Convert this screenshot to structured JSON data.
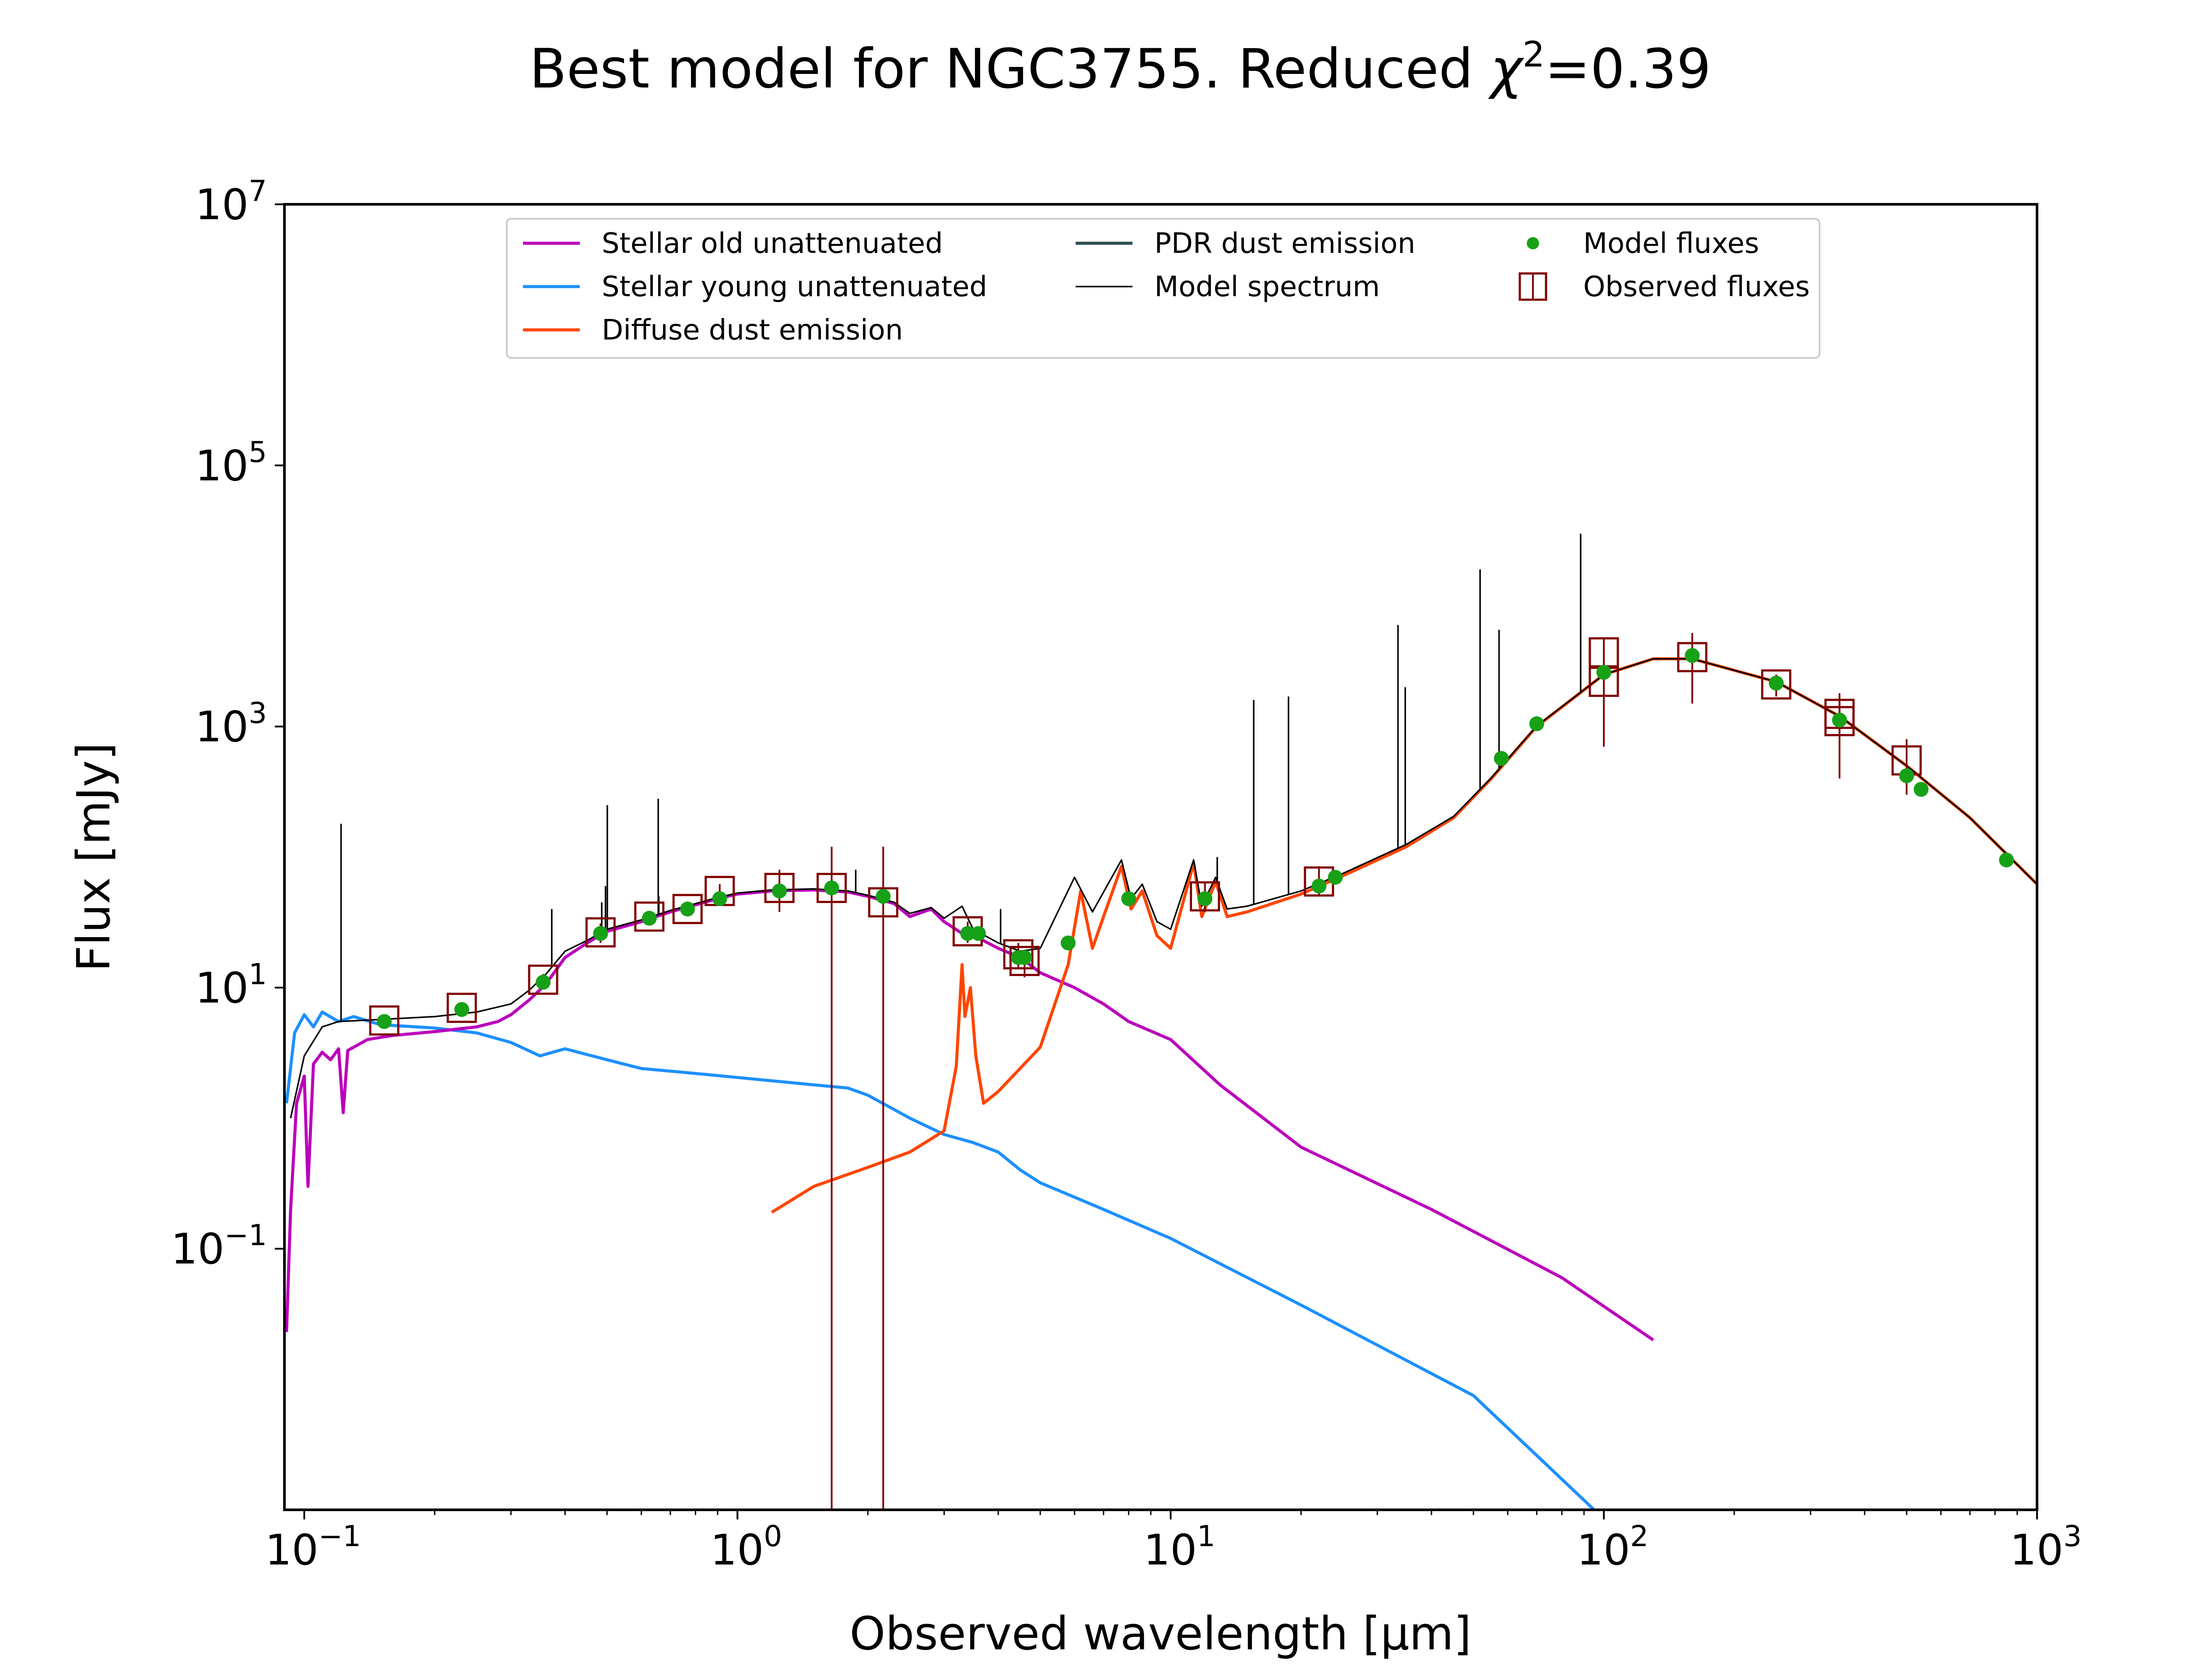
{
  "chart_data": {
    "type": "line",
    "title_main": "Best model for NGC3755. Reduced ",
    "title_chi": "χ",
    "title_exp": "2",
    "title_value": "=0.39",
    "xlabel": "Observed wavelength [μm]",
    "ylabel": "Flux [mJy]",
    "xscale": "log",
    "yscale": "log",
    "xlim": [
      0.09,
      1000
    ],
    "ylim": [
      0.001,
      10000000
    ],
    "grid": false,
    "legend_position": "top-center",
    "x_ticks": [
      {
        "value": 0.1,
        "base": "10",
        "exp": "−1"
      },
      {
        "value": 1,
        "base": "10",
        "exp": "0"
      },
      {
        "value": 10,
        "base": "10",
        "exp": "1"
      },
      {
        "value": 100,
        "base": "10",
        "exp": "2"
      },
      {
        "value": 1000,
        "base": "10",
        "exp": "3"
      }
    ],
    "y_ticks": [
      {
        "value": 0.1,
        "base": "10",
        "exp": "−1"
      },
      {
        "value": 10,
        "base": "10",
        "exp": "1"
      },
      {
        "value": 1000,
        "base": "10",
        "exp": "3"
      },
      {
        "value": 100000,
        "base": "10",
        "exp": "5"
      },
      {
        "value": 10000000,
        "base": "10",
        "exp": "7"
      }
    ],
    "legend": [
      {
        "label": "Stellar old unattenuated",
        "kind": "line",
        "color": "#bb00bb"
      },
      {
        "label": "Stellar young unattenuated",
        "kind": "line",
        "color": "#1e90ff"
      },
      {
        "label": "Diffuse dust emission",
        "kind": "line",
        "color": "#ff4500"
      },
      {
        "label": "PDR dust emission",
        "kind": "line",
        "color": "#2f4f4f"
      },
      {
        "label": "Model spectrum",
        "kind": "thinline",
        "color": "#000000"
      },
      {
        "label": "Model fluxes",
        "kind": "dot",
        "color": "#17a117"
      },
      {
        "label": "Observed fluxes",
        "kind": "square",
        "color": "#800000"
      }
    ],
    "series": [
      {
        "name": "Stellar old unattenuated",
        "color": "#bb00bb",
        "points": [
          [
            0.091,
            0.023
          ],
          [
            0.093,
            0.2
          ],
          [
            0.096,
            1.3
          ],
          [
            0.1,
            2.1
          ],
          [
            0.102,
            0.3
          ],
          [
            0.105,
            2.6
          ],
          [
            0.11,
            3.2
          ],
          [
            0.115,
            2.8
          ],
          [
            0.12,
            3.4
          ],
          [
            0.123,
            1.1
          ],
          [
            0.126,
            3.3
          ],
          [
            0.14,
            4.0
          ],
          [
            0.16,
            4.3
          ],
          [
            0.2,
            4.6
          ],
          [
            0.25,
            5.0
          ],
          [
            0.28,
            5.5
          ],
          [
            0.3,
            6.2
          ],
          [
            0.33,
            8.0
          ],
          [
            0.36,
            10.5
          ],
          [
            0.4,
            17
          ],
          [
            0.45,
            22
          ],
          [
            0.5,
            27
          ],
          [
            0.6,
            32
          ],
          [
            0.7,
            38
          ],
          [
            0.8,
            43
          ],
          [
            0.9,
            48
          ],
          [
            1.0,
            52
          ],
          [
            1.2,
            55
          ],
          [
            1.5,
            56
          ],
          [
            1.8,
            54
          ],
          [
            2.0,
            50
          ],
          [
            2.3,
            44
          ],
          [
            2.5,
            35
          ],
          [
            2.8,
            40
          ],
          [
            3.0,
            32
          ],
          [
            3.3,
            26
          ],
          [
            3.6,
            24
          ],
          [
            4.0,
            20
          ],
          [
            4.5,
            17
          ],
          [
            5.0,
            13
          ],
          [
            6.0,
            10
          ],
          [
            7.0,
            7.5
          ],
          [
            8.0,
            5.5
          ],
          [
            10.0,
            4.0
          ],
          [
            13.0,
            1.8
          ],
          [
            20.0,
            0.6
          ],
          [
            40.0,
            0.2
          ],
          [
            80.0,
            0.06
          ],
          [
            130.0,
            0.02
          ]
        ]
      },
      {
        "name": "Stellar young unattenuated",
        "color": "#1e90ff",
        "points": [
          [
            0.091,
            1.3
          ],
          [
            0.095,
            4.5
          ],
          [
            0.1,
            6.2
          ],
          [
            0.105,
            5.0
          ],
          [
            0.11,
            6.5
          ],
          [
            0.12,
            5.5
          ],
          [
            0.13,
            6.0
          ],
          [
            0.15,
            5.2
          ],
          [
            0.2,
            4.9
          ],
          [
            0.25,
            4.5
          ],
          [
            0.3,
            3.8
          ],
          [
            0.35,
            3.0
          ],
          [
            0.4,
            3.4
          ],
          [
            0.5,
            2.8
          ],
          [
            0.6,
            2.4
          ],
          [
            0.8,
            2.2
          ],
          [
            1.0,
            2.05
          ],
          [
            1.5,
            1.8
          ],
          [
            1.8,
            1.7
          ],
          [
            2.0,
            1.5
          ],
          [
            2.5,
            1.0
          ],
          [
            3.0,
            0.75
          ],
          [
            3.5,
            0.65
          ],
          [
            4.0,
            0.55
          ],
          [
            4.5,
            0.4
          ],
          [
            5.0,
            0.32
          ],
          [
            7.0,
            0.2
          ],
          [
            10.0,
            0.12
          ],
          [
            20.0,
            0.037
          ],
          [
            50.0,
            0.0075
          ],
          [
            95.0,
            0.001
          ]
        ]
      },
      {
        "name": "Diffuse dust emission",
        "color": "#ff4500",
        "points": [
          [
            1.2,
            0.19
          ],
          [
            1.5,
            0.3
          ],
          [
            2.0,
            0.42
          ],
          [
            2.5,
            0.55
          ],
          [
            3.0,
            0.8
          ],
          [
            3.2,
            2.5
          ],
          [
            3.3,
            15
          ],
          [
            3.35,
            6.0
          ],
          [
            3.45,
            10
          ],
          [
            3.55,
            3.0
          ],
          [
            3.7,
            1.3
          ],
          [
            4.0,
            1.6
          ],
          [
            5.0,
            3.5
          ],
          [
            5.8,
            15
          ],
          [
            6.2,
            55
          ],
          [
            6.6,
            20
          ],
          [
            7.0,
            35
          ],
          [
            7.7,
            85
          ],
          [
            8.1,
            40
          ],
          [
            8.6,
            55
          ],
          [
            9.3,
            25
          ],
          [
            10.0,
            20
          ],
          [
            11.3,
            90
          ],
          [
            11.8,
            35
          ],
          [
            12.7,
            65
          ],
          [
            13.5,
            35
          ],
          [
            15.0,
            38
          ],
          [
            20.0,
            52
          ],
          [
            25.0,
            72
          ],
          [
            35.0,
            120
          ],
          [
            45.0,
            200
          ],
          [
            55.0,
            400
          ],
          [
            70.0,
            1000
          ],
          [
            100.0,
            2500
          ],
          [
            130.0,
            3300
          ],
          [
            160.0,
            3300
          ],
          [
            250.0,
            2200
          ],
          [
            350.0,
            1200
          ],
          [
            500.0,
            500
          ],
          [
            700.0,
            200
          ],
          [
            1000.0,
            62
          ]
        ]
      },
      {
        "name": "Model spectrum",
        "color": "#000000",
        "points": [
          [
            0.093,
            1.0
          ],
          [
            0.1,
            3.0
          ],
          [
            0.11,
            5.0
          ],
          [
            0.12,
            5.5
          ],
          [
            0.15,
            5.7
          ],
          [
            0.2,
            6.0
          ],
          [
            0.25,
            6.5
          ],
          [
            0.3,
            7.5
          ],
          [
            0.33,
            9.5
          ],
          [
            0.36,
            12.5
          ],
          [
            0.4,
            19
          ],
          [
            0.45,
            23
          ],
          [
            0.5,
            28
          ],
          [
            0.6,
            33
          ],
          [
            0.7,
            39
          ],
          [
            0.8,
            44
          ],
          [
            0.9,
            49
          ],
          [
            1.0,
            53
          ],
          [
            1.2,
            56
          ],
          [
            1.5,
            57
          ],
          [
            1.8,
            55
          ],
          [
            2.0,
            51
          ],
          [
            2.3,
            45
          ],
          [
            2.5,
            37
          ],
          [
            2.8,
            41
          ],
          [
            3.0,
            34
          ],
          [
            3.3,
            42
          ],
          [
            3.5,
            28
          ],
          [
            4.0,
            22
          ],
          [
            4.5,
            19
          ],
          [
            5.0,
            20
          ],
          [
            6.0,
            70
          ],
          [
            6.6,
            38
          ],
          [
            7.7,
            95
          ],
          [
            8.1,
            48
          ],
          [
            8.6,
            62
          ],
          [
            9.3,
            32
          ],
          [
            10.0,
            28
          ],
          [
            11.3,
            95
          ],
          [
            11.8,
            42
          ],
          [
            12.7,
            70
          ],
          [
            13.5,
            40
          ],
          [
            15.0,
            42
          ],
          [
            20.0,
            55
          ],
          [
            25.0,
            75
          ],
          [
            35.0,
            125
          ],
          [
            45.0,
            205
          ],
          [
            55.0,
            405
          ],
          [
            70.0,
            1010
          ],
          [
            100.0,
            2500
          ],
          [
            130.0,
            3300
          ],
          [
            160.0,
            3300
          ],
          [
            250.0,
            2200
          ],
          [
            350.0,
            1200
          ],
          [
            500.0,
            500
          ],
          [
            700.0,
            200
          ],
          [
            1000.0,
            62
          ]
        ]
      }
    ],
    "emission_lines": [
      [
        0.1216,
        180
      ],
      [
        0.3727,
        40
      ],
      [
        0.4861,
        45
      ],
      [
        0.4959,
        60
      ],
      [
        0.5007,
        250
      ],
      [
        0.6563,
        280
      ],
      [
        0.6584,
        50
      ],
      [
        1.083,
        55
      ],
      [
        1.875,
        80
      ],
      [
        4.05,
        40
      ],
      [
        12.81,
        100
      ],
      [
        15.55,
        1600
      ],
      [
        18.71,
        1700
      ],
      [
        33.48,
        6000
      ],
      [
        34.8,
        2000
      ],
      [
        51.8,
        16000
      ],
      [
        57.3,
        5500
      ],
      [
        88.4,
        30000
      ]
    ],
    "observed_fluxes": [
      {
        "x": 0.153,
        "y": 5.6,
        "lo": 5.0,
        "hi": 6.2
      },
      {
        "x": 0.231,
        "y": 7.0,
        "lo": 6.3,
        "hi": 7.7
      },
      {
        "x": 0.356,
        "y": 11.5,
        "lo": 10.3,
        "hi": 12.7
      },
      {
        "x": 0.483,
        "y": 26.5,
        "lo": 22,
        "hi": 31
      },
      {
        "x": 0.626,
        "y": 35,
        "lo": 32,
        "hi": 38
      },
      {
        "x": 0.767,
        "y": 40,
        "lo": 37,
        "hi": 43
      },
      {
        "x": 0.91,
        "y": 55,
        "lo": 48,
        "hi": 62
      },
      {
        "x": 1.25,
        "y": 58,
        "lo": 38,
        "hi": 80
      },
      {
        "x": 1.65,
        "y": 58,
        "lo": 0.001,
        "hi": 120
      },
      {
        "x": 2.17,
        "y": 45,
        "lo": 0.001,
        "hi": 120
      },
      {
        "x": 3.4,
        "y": 27,
        "lo": 22,
        "hi": 32
      },
      {
        "x": 4.45,
        "y": 18,
        "lo": 14,
        "hi": 22
      },
      {
        "x": 4.6,
        "y": 16,
        "lo": 12,
        "hi": 19
      },
      {
        "x": 12.0,
        "y": 50,
        "lo": 38,
        "hi": 64
      },
      {
        "x": 22.0,
        "y": 65,
        "lo": 50,
        "hi": 85
      },
      {
        "x": 100.0,
        "y": 3700,
        "lo": 2700,
        "hi": 4700
      },
      {
        "x": 100.0,
        "y": 2200,
        "lo": 700,
        "hi": 3700
      },
      {
        "x": 160.0,
        "y": 3400,
        "lo": 1500,
        "hi": 5200
      },
      {
        "x": 250.0,
        "y": 2100,
        "lo": 1700,
        "hi": 2500
      },
      {
        "x": 350.0,
        "y": 1100,
        "lo": 400,
        "hi": 1800
      },
      {
        "x": 350.0,
        "y": 1250,
        "lo": 900,
        "hi": 1600
      },
      {
        "x": 500.0,
        "y": 550,
        "lo": 300,
        "hi": 800
      }
    ],
    "model_fluxes": [
      [
        0.153,
        5.5
      ],
      [
        0.231,
        6.8
      ],
      [
        0.356,
        11
      ],
      [
        0.483,
        26
      ],
      [
        0.626,
        34
      ],
      [
        0.767,
        40
      ],
      [
        0.91,
        48
      ],
      [
        1.25,
        55
      ],
      [
        1.65,
        58
      ],
      [
        2.17,
        50
      ],
      [
        3.4,
        26
      ],
      [
        3.6,
        26
      ],
      [
        4.45,
        17
      ],
      [
        4.6,
        17
      ],
      [
        5.8,
        22
      ],
      [
        8.0,
        48
      ],
      [
        12.0,
        48
      ],
      [
        22.0,
        60
      ],
      [
        24.0,
        70
      ],
      [
        58.0,
        570
      ],
      [
        70.0,
        1050
      ],
      [
        100.0,
        2600
      ],
      [
        160.0,
        3500
      ],
      [
        250.0,
        2150
      ],
      [
        350.0,
        1120
      ],
      [
        500.0,
        420
      ],
      [
        540.0,
        330
      ],
      [
        850.0,
        95
      ]
    ]
  }
}
